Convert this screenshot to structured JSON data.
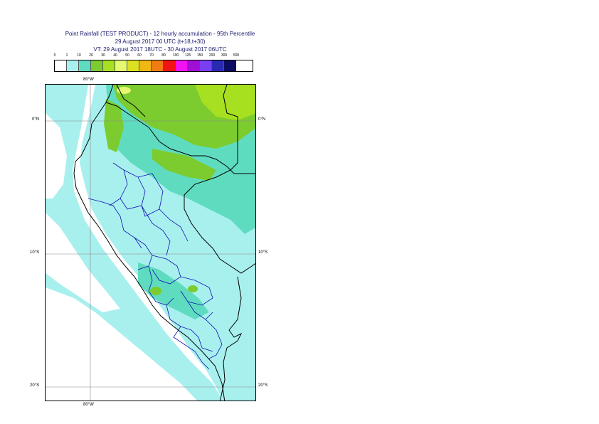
{
  "title": {
    "line1": "Point Rainfall (TEST PRODUCT) - 12 hourly accumulation - 95th Percentile",
    "line2": "29 August 2017 00 UTC (t+18,t+30)",
    "line3": "VT: 29 August 2017 18UTC - 30 August 2017 06UTC"
  },
  "legend": {
    "thresholds": [
      "0",
      "1",
      "10",
      "20",
      "30",
      "40",
      "50",
      "60",
      "70",
      "80",
      "100",
      "125",
      "150",
      "200",
      "300",
      "500"
    ],
    "colors": [
      "#ffffff",
      "#a8f0ee",
      "#5fdcc0",
      "#7ccc30",
      "#a6e020",
      "#e4f870",
      "#dce020",
      "#f0b814",
      "#f07c14",
      "#f01414",
      "#f014f0",
      "#a010d0",
      "#7840f0",
      "#2a2ab0",
      "#0c0c60"
    ]
  },
  "axes": {
    "lon_top": "80°W",
    "lon_bottom": "80°W",
    "lat_left": [
      "0°N",
      "10°S",
      "20°S"
    ],
    "lat_right": [
      "0°N",
      "10°S",
      "20°S"
    ]
  }
}
